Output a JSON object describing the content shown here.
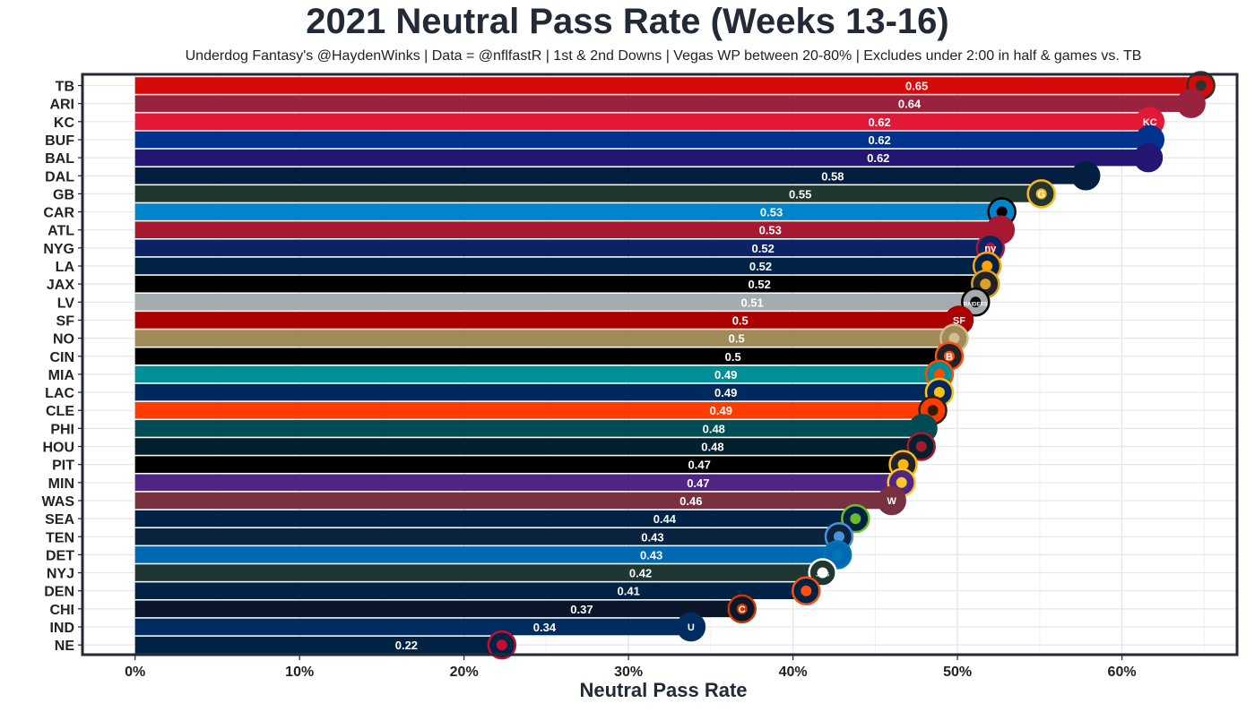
{
  "chart_data": {
    "type": "bar",
    "orientation": "horizontal",
    "title": "2021 Neutral Pass Rate (Weeks 13-16)",
    "subtitle": "Underdog Fantasy's @HaydenWinks | Data = @nflfastR | 1st & 2nd Downs | Vegas WP between 20-80% | Excludes under 2:00 in half & games vs. TB",
    "xlabel": "Neutral Pass Rate",
    "ylabel": "",
    "xlim": [
      -0.032,
      0.67
    ],
    "x_ticks": [
      0,
      0.1,
      0.2,
      0.3,
      0.4,
      0.5,
      0.6
    ],
    "x_tick_labels": [
      "0%",
      "10%",
      "20%",
      "30%",
      "40%",
      "50%",
      "60%"
    ],
    "grid": true,
    "categories": [
      "TB",
      "ARI",
      "KC",
      "BUF",
      "BAL",
      "DAL",
      "GB",
      "CAR",
      "ATL",
      "NYG",
      "LA",
      "JAX",
      "LV",
      "SF",
      "NO",
      "CIN",
      "MIA",
      "LAC",
      "CLE",
      "PHI",
      "HOU",
      "PIT",
      "MIN",
      "WAS",
      "SEA",
      "TEN",
      "DET",
      "NYJ",
      "DEN",
      "CHI",
      "IND",
      "NE"
    ],
    "values": [
      0.648,
      0.642,
      0.617,
      0.617,
      0.616,
      0.578,
      0.551,
      0.527,
      0.526,
      0.52,
      0.518,
      0.517,
      0.511,
      0.501,
      0.498,
      0.495,
      0.489,
      0.489,
      0.485,
      0.479,
      0.478,
      0.467,
      0.466,
      0.46,
      0.438,
      0.428,
      0.427,
      0.418,
      0.408,
      0.369,
      0.338,
      0.223
    ],
    "data_labels": [
      "0.65",
      "0.64",
      "0.62",
      "0.62",
      "0.62",
      "0.58",
      "0.55",
      "0.53",
      "0.53",
      "0.52",
      "0.52",
      "0.52",
      "0.51",
      "0.5",
      "0.5",
      "0.5",
      "0.49",
      "0.49",
      "0.49",
      "0.48",
      "0.48",
      "0.47",
      "0.47",
      "0.46",
      "0.44",
      "0.43",
      "0.43",
      "0.42",
      "0.41",
      "0.37",
      "0.34",
      "0.22"
    ],
    "colors": [
      "#d50a0a",
      "#97233f",
      "#e31837",
      "#00338d",
      "#241773",
      "#041e42",
      "#203731",
      "#0085ca",
      "#a71930",
      "#0b2265",
      "#002244",
      "#000000",
      "#a5acaf",
      "#aa0000",
      "#a08a58",
      "#000000",
      "#008e97",
      "#002a5e",
      "#ff3c00",
      "#004c54",
      "#03202f",
      "#000000",
      "#4f2683",
      "#773141",
      "#002244",
      "#0c2340",
      "#0069b1",
      "#203731",
      "#002244",
      "#0b162a",
      "#002c5f",
      "#002244"
    ],
    "data_label_colors": [
      "#ffffff",
      "#ffffff",
      "#ffffff",
      "#ffffff",
      "#ffffff",
      "#ffffff",
      "#ffffff",
      "#ffffff",
      "#ffffff",
      "#ffffff",
      "#ffffff",
      "#ffffff",
      "#f5f5f5",
      "#ffffff",
      "#ffffff",
      "#ffffff",
      "#ffffff",
      "#ffffff",
      "#ffffff",
      "#ffffff",
      "#ffffff",
      "#ffffff",
      "#ffffff",
      "#ffffff",
      "#ffffff",
      "#ffffff",
      "#ffffff",
      "#ffffff",
      "#ffffff",
      "#ffffff",
      "#ffffff",
      "#ffffff"
    ],
    "logo_accent_colors": [
      "#34302b",
      "#97233f",
      "#e31837",
      "#00338d",
      "#241773",
      "#041e42",
      "#ffb612",
      "#000000",
      "#a71930",
      "#a71930",
      "#ffa300",
      "#d7a22a",
      "#000000",
      "#aa0000",
      "#d3bc8d",
      "#fb4f14",
      "#fc4c02",
      "#ffc20e",
      "#311d00",
      "#004c54",
      "#a71930",
      "#ffb612",
      "#ffc62f",
      "#773141",
      "#69be28",
      "#4b92db",
      "#0076b6",
      "#ffffff",
      "#fb4f14",
      "#c83803",
      "#002c5f",
      "#c60c30"
    ],
    "logo_icons": [
      "bucs-logo-icon",
      "cardinals-logo-icon",
      "chiefs-logo-icon",
      "bills-logo-icon",
      "ravens-logo-icon",
      "cowboys-star-icon",
      "packers-g-icon",
      "panthers-logo-icon",
      "falcons-logo-icon",
      "giants-ny-icon",
      "rams-logo-icon",
      "jaguars-logo-icon",
      "raiders-shield-icon",
      "49ers-logo-icon",
      "saints-fleur-icon",
      "bengals-b-icon",
      "dolphins-logo-icon",
      "chargers-bolt-icon",
      "browns-dog-icon",
      "eagles-logo-icon",
      "texans-logo-icon",
      "steelers-logo-icon",
      "vikings-logo-icon",
      "washington-w-icon",
      "seahawks-logo-icon",
      "titans-logo-icon",
      "lions-logo-icon",
      "jets-logo-icon",
      "broncos-logo-icon",
      "bears-c-icon",
      "colts-horseshoe-icon",
      "patriots-logo-icon"
    ],
    "logo_texts": [
      "",
      "",
      "KC",
      "",
      "",
      "",
      "G",
      "",
      "",
      "ny",
      "",
      "",
      "RAIDERS",
      "SF",
      "",
      "B",
      "",
      "",
      "",
      "",
      "",
      "",
      "",
      "W",
      "",
      "",
      "",
      "JETS",
      "",
      "C",
      "U",
      ""
    ]
  }
}
